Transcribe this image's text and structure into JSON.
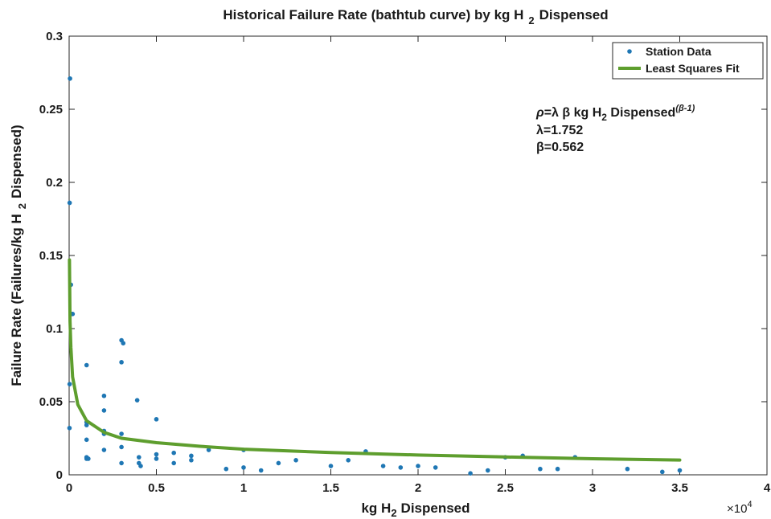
{
  "chart_data": {
    "type": "scatter",
    "title": "Historical Failure Rate (bathtub curve) by kg H",
    "title_sub": "2",
    "title_tail": "Dispensed",
    "xlabel": "kg H",
    "xlabel_sub": "2",
    "xlabel_tail": "Dispensed",
    "ylabel": "Failure Rate (Failures/kg H",
    "ylabel_sub": "2",
    "ylabel_tail": "Dispensed)",
    "x_multiplier": "×10",
    "x_multiplier_exp": "4",
    "xlim": [
      0,
      4
    ],
    "ylim": [
      0,
      0.3
    ],
    "xticks": [
      "0",
      "0.5",
      "1",
      "1.5",
      "2",
      "2.5",
      "3",
      "3.5",
      "4"
    ],
    "yticks": [
      "0",
      "0.05",
      "0.1",
      "0.15",
      "0.2",
      "0.25",
      "0.3"
    ],
    "grid": false,
    "legend_position": "top-right",
    "colors": {
      "points": "#1f77b4",
      "fit": "#5e9e2e",
      "axis": "#262626"
    },
    "series": [
      {
        "name": "Station Data",
        "kind": "scatter",
        "x": [
          0.002,
          0.003,
          0.003,
          0.005,
          0.01,
          0.015,
          0.02,
          0.1,
          0.1,
          0.1,
          0.1,
          0.1,
          0.1,
          0.11,
          0.2,
          0.2,
          0.2,
          0.2,
          0.2,
          0.3,
          0.3,
          0.3,
          0.3,
          0.3,
          0.31,
          0.39,
          0.4,
          0.4,
          0.41,
          0.5,
          0.5,
          0.5,
          0.6,
          0.6,
          0.7,
          0.7,
          0.8,
          0.9,
          1.0,
          1.0,
          1.1,
          1.2,
          1.3,
          1.5,
          1.6,
          1.7,
          1.8,
          1.9,
          2.0,
          2.1,
          2.3,
          2.4,
          2.5,
          2.6,
          2.7,
          2.8,
          2.9,
          3.2,
          3.4,
          3.5
        ],
        "y": [
          0.032,
          0.062,
          0.186,
          0.271,
          0.13,
          0.11,
          0.11,
          0.075,
          0.036,
          0.034,
          0.024,
          0.011,
          0.012,
          0.011,
          0.054,
          0.044,
          0.03,
          0.028,
          0.017,
          0.092,
          0.077,
          0.028,
          0.019,
          0.008,
          0.09,
          0.051,
          0.012,
          0.008,
          0.006,
          0.038,
          0.014,
          0.011,
          0.015,
          0.008,
          0.013,
          0.01,
          0.017,
          0.004,
          0.017,
          0.005,
          0.003,
          0.008,
          0.01,
          0.006,
          0.01,
          0.016,
          0.006,
          0.005,
          0.006,
          0.005,
          0.001,
          0.003,
          0.012,
          0.013,
          0.004,
          0.004,
          0.012,
          0.004,
          0.002,
          0.003
        ]
      },
      {
        "name": "Least Squares Fit",
        "kind": "line",
        "x": [
          0.002,
          0.005,
          0.01,
          0.02,
          0.05,
          0.1,
          0.2,
          0.3,
          0.5,
          0.75,
          1.0,
          1.5,
          2.0,
          2.5,
          3.0,
          3.5
        ],
        "y": [
          0.147,
          0.105,
          0.087,
          0.067,
          0.048,
          0.037,
          0.029,
          0.025,
          0.022,
          0.0195,
          0.0175,
          0.0152,
          0.0135,
          0.0122,
          0.011,
          0.0101
        ]
      }
    ],
    "annotation": {
      "rho": "ρ",
      "eq_mid": "=λ β kg H",
      "eq_sub": "2",
      "eq_tail": " Dispensed",
      "eq_sup": "(β-1)",
      "lambda_line": "λ=1.752",
      "beta_line": "β=0.562"
    }
  }
}
